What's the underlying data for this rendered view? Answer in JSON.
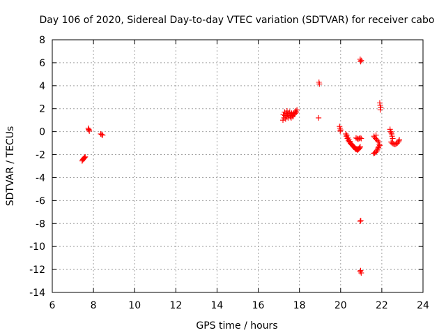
{
  "chart_data": {
    "type": "scatter",
    "title": "Day 106 of 2020, Sidereal Day-to-day VTEC variation (SDTVAR) for receiver cabo",
    "xlabel": "GPS time / hours",
    "ylabel": "SDTVAR / TECUs",
    "xlim": [
      6,
      24
    ],
    "ylim": [
      -14,
      8
    ],
    "xticks": [
      6,
      8,
      10,
      12,
      14,
      16,
      18,
      20,
      22,
      24
    ],
    "yticks": [
      -14,
      -12,
      -10,
      -8,
      -6,
      -4,
      -2,
      0,
      2,
      4,
      6,
      8
    ],
    "grid": true,
    "marker": "+",
    "series": [
      {
        "name": "SDTVAR",
        "color": "#ff0000",
        "points": [
          [
            7.45,
            -2.55
          ],
          [
            7.48,
            -2.45
          ],
          [
            7.5,
            -2.4
          ],
          [
            7.52,
            -2.35
          ],
          [
            7.55,
            -2.3
          ],
          [
            7.57,
            -2.25
          ],
          [
            7.6,
            -2.2
          ],
          [
            7.75,
            0.3
          ],
          [
            7.77,
            0.2
          ],
          [
            7.8,
            0.05
          ],
          [
            7.78,
            0.15
          ],
          [
            8.35,
            -0.2
          ],
          [
            8.4,
            -0.25
          ],
          [
            8.45,
            -0.3
          ],
          [
            17.2,
            1.0
          ],
          [
            17.22,
            1.5
          ],
          [
            17.25,
            1.2
          ],
          [
            17.28,
            1.7
          ],
          [
            17.3,
            1.4
          ],
          [
            17.33,
            1.1
          ],
          [
            17.35,
            1.6
          ],
          [
            17.38,
            1.3
          ],
          [
            17.4,
            1.8
          ],
          [
            17.42,
            1.5
          ],
          [
            17.45,
            1.2
          ],
          [
            17.48,
            1.6
          ],
          [
            17.5,
            1.4
          ],
          [
            17.53,
            1.7
          ],
          [
            17.55,
            1.3
          ],
          [
            17.58,
            1.5
          ],
          [
            17.6,
            1.2
          ],
          [
            17.62,
            1.6
          ],
          [
            17.65,
            1.4
          ],
          [
            17.68,
            1.3
          ],
          [
            17.7,
            1.5
          ],
          [
            17.72,
            1.6
          ],
          [
            17.75,
            1.5
          ],
          [
            17.78,
            1.7
          ],
          [
            17.8,
            1.6
          ],
          [
            17.82,
            1.8
          ],
          [
            17.85,
            1.7
          ],
          [
            17.88,
            1.9
          ],
          [
            18.95,
            4.3
          ],
          [
            18.97,
            4.15
          ],
          [
            18.93,
            1.2
          ],
          [
            19.95,
            0.45
          ],
          [
            19.97,
            0.3
          ],
          [
            20.0,
            0.15
          ],
          [
            19.98,
            0.05
          ],
          [
            20.25,
            -0.2
          ],
          [
            20.28,
            -0.4
          ],
          [
            20.3,
            -0.3
          ],
          [
            20.33,
            -0.6
          ],
          [
            20.35,
            -0.5
          ],
          [
            20.38,
            -0.8
          ],
          [
            20.4,
            -0.7
          ],
          [
            20.43,
            -0.9
          ],
          [
            20.45,
            -0.85
          ],
          [
            20.48,
            -1.0
          ],
          [
            20.5,
            -1.05
          ],
          [
            20.53,
            -1.1
          ],
          [
            20.55,
            -1.15
          ],
          [
            20.58,
            -1.2
          ],
          [
            20.6,
            -1.25
          ],
          [
            20.63,
            -1.3
          ],
          [
            20.65,
            -1.35
          ],
          [
            20.68,
            -1.4
          ],
          [
            20.7,
            -1.45
          ],
          [
            20.73,
            -1.5
          ],
          [
            20.75,
            -1.55
          ],
          [
            20.78,
            -1.5
          ],
          [
            20.8,
            -1.55
          ],
          [
            20.83,
            -1.6
          ],
          [
            20.85,
            -1.55
          ],
          [
            20.88,
            -1.5
          ],
          [
            20.9,
            -1.45
          ],
          [
            20.93,
            -1.4
          ],
          [
            20.95,
            -1.3
          ],
          [
            20.75,
            -0.55
          ],
          [
            20.8,
            -0.6
          ],
          [
            20.85,
            -0.65
          ],
          [
            20.9,
            -0.6
          ],
          [
            20.95,
            -0.55
          ],
          [
            21.0,
            -0.6
          ],
          [
            20.95,
            6.3
          ],
          [
            20.97,
            6.1
          ],
          [
            21.0,
            6.2
          ],
          [
            20.95,
            -7.8
          ],
          [
            20.98,
            -7.75
          ],
          [
            20.95,
            -12.2
          ],
          [
            20.97,
            -12.1
          ],
          [
            21.0,
            -12.3
          ],
          [
            21.6,
            -1.9
          ],
          [
            21.65,
            -1.85
          ],
          [
            21.7,
            -1.8
          ],
          [
            21.75,
            -1.7
          ],
          [
            21.78,
            -1.6
          ],
          [
            21.8,
            -1.5
          ],
          [
            21.83,
            -1.4
          ],
          [
            21.85,
            -1.3
          ],
          [
            21.62,
            -0.4
          ],
          [
            21.65,
            -0.5
          ],
          [
            21.7,
            -0.6
          ],
          [
            21.72,
            -0.3
          ],
          [
            21.75,
            -0.7
          ],
          [
            21.8,
            -0.8
          ],
          [
            21.85,
            -0.9
          ],
          [
            21.88,
            -1.1
          ],
          [
            21.9,
            -1.2
          ],
          [
            21.9,
            2.5
          ],
          [
            21.92,
            2.3
          ],
          [
            21.95,
            2.1
          ],
          [
            21.93,
            1.9
          ],
          [
            22.4,
            0.2
          ],
          [
            22.43,
            0.0
          ],
          [
            22.45,
            -0.1
          ],
          [
            22.48,
            -0.2
          ],
          [
            22.5,
            -0.4
          ],
          [
            22.53,
            -0.6
          ],
          [
            22.45,
            -0.9
          ],
          [
            22.5,
            -1.0
          ],
          [
            22.55,
            -1.05
          ],
          [
            22.6,
            -1.1
          ],
          [
            22.65,
            -1.1
          ],
          [
            22.7,
            -1.05
          ],
          [
            22.75,
            -1.0
          ],
          [
            22.8,
            -0.9
          ],
          [
            22.83,
            -0.8
          ],
          [
            22.85,
            -0.7
          ]
        ]
      }
    ]
  }
}
